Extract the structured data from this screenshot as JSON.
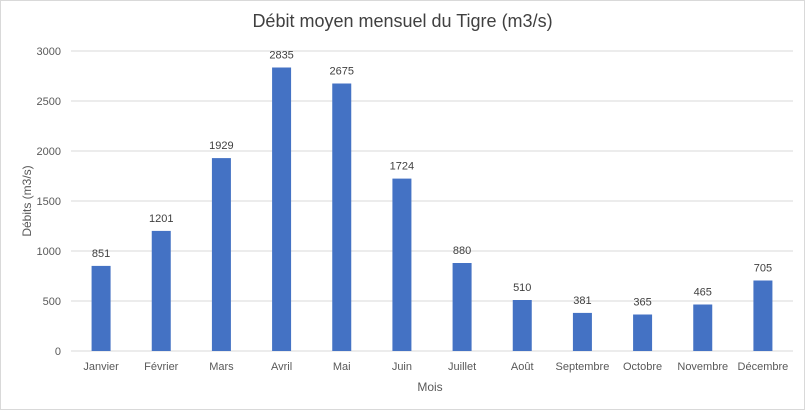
{
  "chart_data": {
    "type": "bar",
    "title": "Débit moyen mensuel du Tigre (m3/s)",
    "xlabel": "Mois",
    "ylabel": "Débits (m3/s)",
    "categories": [
      "Janvier",
      "Février",
      "Mars",
      "Avril",
      "Mai",
      "Juin",
      "Juillet",
      "Août",
      "Septembre",
      "Octobre",
      "Novembre",
      "Décembre"
    ],
    "values": [
      851,
      1201,
      1929,
      2835,
      2675,
      1724,
      880,
      510,
      381,
      365,
      465,
      705
    ],
    "ylim": [
      0,
      3000
    ],
    "yticks": [
      0,
      500,
      1000,
      1500,
      2000,
      2500,
      3000
    ],
    "grid": true,
    "bar_color": "#4472c4",
    "grid_color": "#d9d9d9"
  }
}
